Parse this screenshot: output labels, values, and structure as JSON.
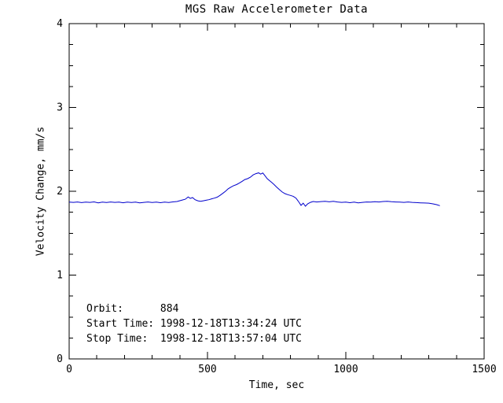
{
  "chart_data": {
    "type": "line",
    "title": "MGS Raw Accelerometer Data",
    "xlabel": "Time, sec",
    "ylabel": "Velocity Change, mm/s",
    "xlim": [
      0,
      1500
    ],
    "ylim": [
      0,
      4
    ],
    "xticks": [
      0,
      500,
      1000,
      1500
    ],
    "yticks": [
      0,
      1,
      2,
      3,
      4
    ],
    "xminor": 100,
    "yminor": 0.25,
    "grid": false,
    "legend": "none",
    "colors": {
      "line": "#0000cc",
      "axis": "#000000",
      "background": "#ffffff"
    },
    "annotations": [
      "Orbit:      884",
      "Start Time: 1998-12-18T13:34:24 UTC",
      "Stop Time:  1998-12-18T13:57:04 UTC"
    ],
    "series": [
      {
        "name": "velocity_change",
        "points": [
          [
            0,
            1.87
          ],
          [
            15,
            1.868
          ],
          [
            30,
            1.872
          ],
          [
            45,
            1.865
          ],
          [
            60,
            1.87
          ],
          [
            75,
            1.868
          ],
          [
            90,
            1.873
          ],
          [
            105,
            1.862
          ],
          [
            120,
            1.87
          ],
          [
            135,
            1.866
          ],
          [
            150,
            1.872
          ],
          [
            165,
            1.868
          ],
          [
            180,
            1.87
          ],
          [
            195,
            1.863
          ],
          [
            210,
            1.871
          ],
          [
            225,
            1.867
          ],
          [
            240,
            1.87
          ],
          [
            255,
            1.862
          ],
          [
            270,
            1.868
          ],
          [
            285,
            1.872
          ],
          [
            300,
            1.866
          ],
          [
            315,
            1.87
          ],
          [
            330,
            1.864
          ],
          [
            345,
            1.87
          ],
          [
            360,
            1.867
          ],
          [
            375,
            1.873
          ],
          [
            390,
            1.878
          ],
          [
            405,
            1.892
          ],
          [
            420,
            1.905
          ],
          [
            430,
            1.932
          ],
          [
            438,
            1.915
          ],
          [
            446,
            1.925
          ],
          [
            455,
            1.9
          ],
          [
            465,
            1.886
          ],
          [
            475,
            1.88
          ],
          [
            485,
            1.886
          ],
          [
            495,
            1.893
          ],
          [
            505,
            1.9
          ],
          [
            515,
            1.91
          ],
          [
            525,
            1.918
          ],
          [
            535,
            1.93
          ],
          [
            545,
            1.95
          ],
          [
            555,
            1.975
          ],
          [
            565,
            2.0
          ],
          [
            575,
            2.03
          ],
          [
            585,
            2.05
          ],
          [
            595,
            2.068
          ],
          [
            605,
            2.08
          ],
          [
            615,
            2.098
          ],
          [
            625,
            2.118
          ],
          [
            635,
            2.14
          ],
          [
            645,
            2.15
          ],
          [
            655,
            2.168
          ],
          [
            665,
            2.195
          ],
          [
            675,
            2.21
          ],
          [
            685,
            2.22
          ],
          [
            692,
            2.205
          ],
          [
            700,
            2.218
          ],
          [
            708,
            2.185
          ],
          [
            716,
            2.15
          ],
          [
            724,
            2.128
          ],
          [
            732,
            2.105
          ],
          [
            740,
            2.082
          ],
          [
            750,
            2.05
          ],
          [
            760,
            2.02
          ],
          [
            770,
            1.992
          ],
          [
            780,
            1.972
          ],
          [
            790,
            1.96
          ],
          [
            800,
            1.95
          ],
          [
            810,
            1.94
          ],
          [
            820,
            1.918
          ],
          [
            830,
            1.872
          ],
          [
            838,
            1.832
          ],
          [
            846,
            1.858
          ],
          [
            854,
            1.822
          ],
          [
            862,
            1.85
          ],
          [
            872,
            1.868
          ],
          [
            882,
            1.878
          ],
          [
            895,
            1.872
          ],
          [
            910,
            1.877
          ],
          [
            925,
            1.88
          ],
          [
            940,
            1.874
          ],
          [
            955,
            1.88
          ],
          [
            970,
            1.872
          ],
          [
            985,
            1.868
          ],
          [
            1000,
            1.87
          ],
          [
            1015,
            1.864
          ],
          [
            1030,
            1.87
          ],
          [
            1045,
            1.862
          ],
          [
            1060,
            1.868
          ],
          [
            1075,
            1.872
          ],
          [
            1090,
            1.87
          ],
          [
            1105,
            1.875
          ],
          [
            1120,
            1.872
          ],
          [
            1135,
            1.878
          ],
          [
            1150,
            1.88
          ],
          [
            1165,
            1.875
          ],
          [
            1180,
            1.872
          ],
          [
            1195,
            1.87
          ],
          [
            1210,
            1.868
          ],
          [
            1225,
            1.872
          ],
          [
            1240,
            1.868
          ],
          [
            1255,
            1.865
          ],
          [
            1270,
            1.862
          ],
          [
            1285,
            1.86
          ],
          [
            1300,
            1.858
          ],
          [
            1315,
            1.85
          ],
          [
            1328,
            1.84
          ],
          [
            1340,
            1.828
          ]
        ]
      }
    ]
  }
}
